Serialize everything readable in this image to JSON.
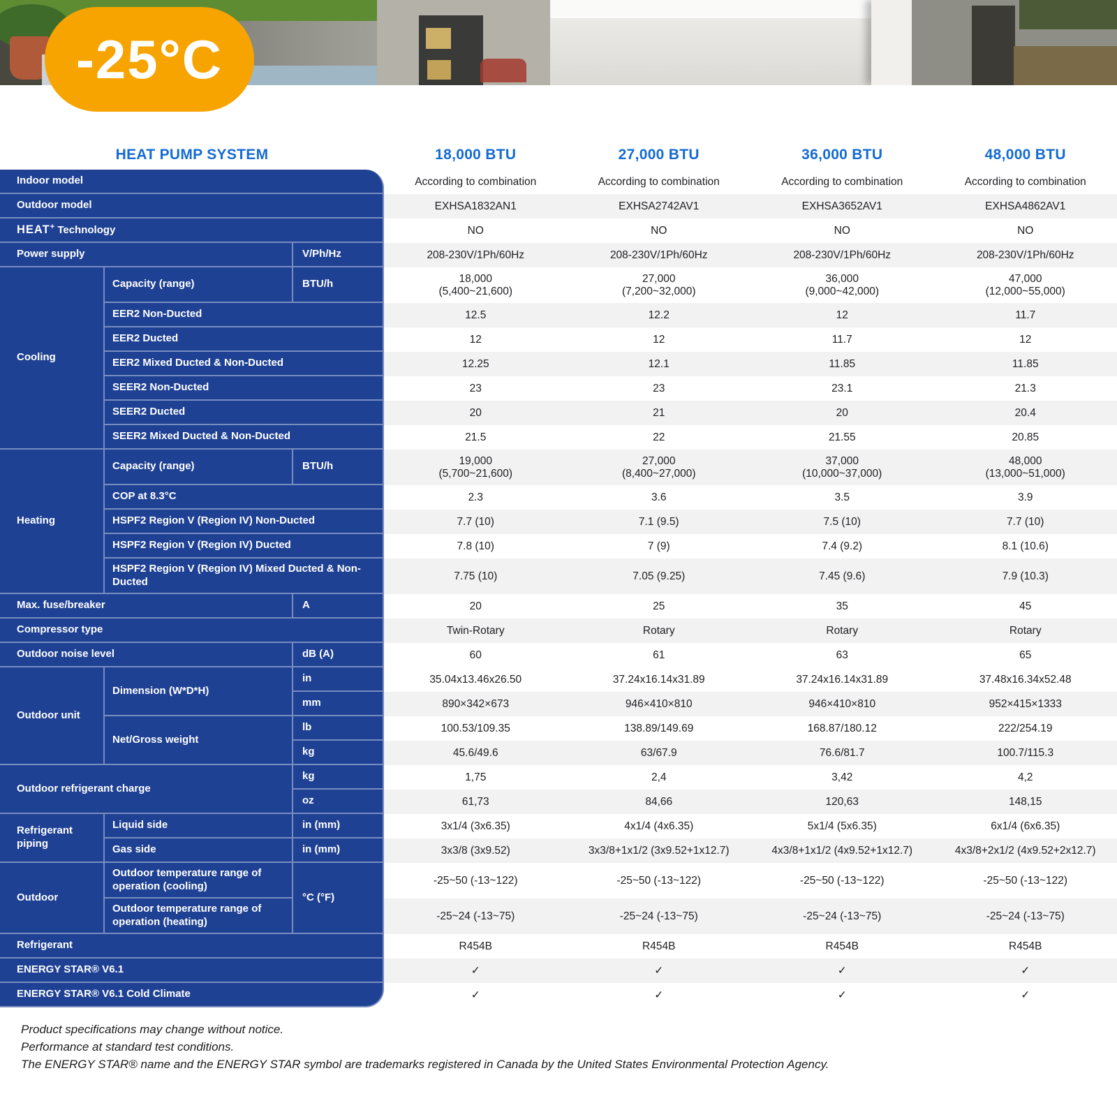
{
  "colors": {
    "panel_blue": "#1f4194",
    "header_blue": "#146bd2",
    "badge_orange": "#f7a400",
    "row_alt": "#f2f2f3"
  },
  "header": {
    "badge_label": "-25°C",
    "logo_name": "starburst-logo"
  },
  "table": {
    "title": "HEAT PUMP SYSTEM",
    "columns": [
      "18,000 BTU",
      "27,000 BTU",
      "36,000 BTU",
      "48,000 BTU"
    ],
    "categories": {
      "cooling": "Cooling",
      "heating": "Heating",
      "outdoor_unit": "Outdoor unit",
      "refrigerant_piping": "Refrigerant piping",
      "outdoor": "Outdoor",
      "dimension": "Dimension (W*D*H)",
      "weight": "Net/Gross weight",
      "outdoor_charge": "Outdoor refrigerant charge"
    },
    "rows": {
      "indoor_model": {
        "label": "Indoor model",
        "values": [
          "According to combination",
          "According to combination",
          "According to combination",
          "According to combination"
        ]
      },
      "outdoor_model": {
        "label": "Outdoor model",
        "values": [
          "EXHSA1832AN1",
          "EXHSA2742AV1",
          "EXHSA3652AV1",
          "EXHSA4862AV1"
        ]
      },
      "heat_tech": {
        "brand": "HEAT",
        "sup": "+",
        "rest": "Technology",
        "values": [
          "NO",
          "NO",
          "NO",
          "NO"
        ]
      },
      "power_supply": {
        "label": "Power supply",
        "unit": "V/Ph/Hz",
        "values": [
          "208-230V/1Ph/60Hz",
          "208-230V/1Ph/60Hz",
          "208-230V/1Ph/60Hz",
          "208-230V/1Ph/60Hz"
        ]
      },
      "cooling_capacity": {
        "label": "Capacity (range)",
        "unit": "BTU/h",
        "values": [
          "18,000\n(5,400~21,600)",
          "27,000\n(7,200~32,000)",
          "36,000\n(9,000~42,000)",
          "47,000\n(12,000~55,000)"
        ]
      },
      "eer2_nd": {
        "label": "EER2 Non-Ducted",
        "values": [
          "12.5",
          "12.2",
          "12",
          "11.7"
        ]
      },
      "eer2_d": {
        "label": "EER2 Ducted",
        "values": [
          "12",
          "12",
          "11.7",
          "12"
        ]
      },
      "eer2_m": {
        "label": "EER2 Mixed Ducted & Non-Ducted",
        "values": [
          "12.25",
          "12.1",
          "11.85",
          "11.85"
        ]
      },
      "seer2_nd": {
        "label": "SEER2 Non-Ducted",
        "values": [
          "23",
          "23",
          "23.1",
          "21.3"
        ]
      },
      "seer2_d": {
        "label": "SEER2 Ducted",
        "values": [
          "20",
          "21",
          "20",
          "20.4"
        ]
      },
      "seer2_m": {
        "label": "SEER2 Mixed Ducted & Non-Ducted",
        "values": [
          "21.5",
          "22",
          "21.55",
          "20.85"
        ]
      },
      "heating_capacity": {
        "label": "Capacity (range)",
        "unit": "BTU/h",
        "values": [
          "19,000\n(5,700~21,600)",
          "27,000\n(8,400~27,000)",
          "37,000\n(10,000~37,000)",
          "48,000\n(13,000~51,000)"
        ]
      },
      "cop": {
        "label": "COP at 8.3°C",
        "values": [
          "2.3",
          "3.6",
          "3.5",
          "3.9"
        ]
      },
      "hspf2_nd": {
        "label": "HSPF2 Region V (Region IV) Non-Ducted",
        "values": [
          "7.7 (10)",
          "7.1 (9.5)",
          "7.5 (10)",
          "7.7 (10)"
        ]
      },
      "hspf2_d": {
        "label": "HSPF2 Region V (Region IV) Ducted",
        "values": [
          "7.8 (10)",
          "7 (9)",
          "7.4 (9.2)",
          "8.1 (10.6)"
        ]
      },
      "hspf2_m": {
        "label": "HSPF2 Region V (Region IV) Mixed Ducted & Non-Ducted",
        "values": [
          "7.75 (10)",
          "7.05 (9.25)",
          "7.45 (9.6)",
          "7.9 (10.3)"
        ]
      },
      "max_fuse": {
        "label": "Max. fuse/breaker",
        "unit": "A",
        "values": [
          "20",
          "25",
          "35",
          "45"
        ]
      },
      "compressor": {
        "label": "Compressor type",
        "values": [
          "Twin-Rotary",
          "Rotary",
          "Rotary",
          "Rotary"
        ]
      },
      "noise": {
        "label": "Outdoor noise level",
        "unit": "dB (A)",
        "values": [
          "60",
          "61",
          "63",
          "65"
        ]
      },
      "dim_in": {
        "unit": "in",
        "values": [
          "35.04x13.46x26.50",
          "37.24x16.14x31.89",
          "37.24x16.14x31.89",
          "37.48x16.34x52.48"
        ]
      },
      "dim_mm": {
        "unit": "mm",
        "values": [
          "890×342×673",
          "946×410×810",
          "946×410×810",
          "952×415×1333"
        ]
      },
      "wt_lb": {
        "unit": "lb",
        "values": [
          "100.53/109.35",
          "138.89/149.69",
          "168.87/180.12",
          "222/254.19"
        ]
      },
      "wt_kg": {
        "unit": "kg",
        "values": [
          "45.6/49.6",
          "63/67.9",
          "76.6/81.7",
          "100.7/115.3"
        ]
      },
      "charge_kg": {
        "unit": "kg",
        "values": [
          "1,75",
          "2,4",
          "3,42",
          "4,2"
        ]
      },
      "charge_oz": {
        "unit": "oz",
        "values": [
          "61,73",
          "84,66",
          "120,63",
          "148,15"
        ]
      },
      "liquid": {
        "label": "Liquid side",
        "unit": "in (mm)",
        "values": [
          "3x1/4 (3x6.35)",
          "4x1/4 (4x6.35)",
          "5x1/4 (5x6.35)",
          "6x1/4 (6x6.35)"
        ]
      },
      "gas": {
        "label": "Gas side",
        "unit": "in (mm)",
        "values": [
          "3x3/8 (3x9.52)",
          "3x3/8+1x1/2 (3x9.52+1x12.7)",
          "4x3/8+1x1/2 (4x9.52+1x12.7)",
          "4x3/8+2x1/2 (4x9.52+2x12.7)"
        ]
      },
      "temp_cool": {
        "label": "Outdoor temperature range of operation (cooling)",
        "unit": "°C (°F)",
        "values": [
          "-25~50 (-13~122)",
          "-25~50 (-13~122)",
          "-25~50 (-13~122)",
          "-25~50 (-13~122)"
        ]
      },
      "temp_heat": {
        "label": "Outdoor temperature range of operation (heating)",
        "values": [
          "-25~24 (-13~75)",
          "-25~24 (-13~75)",
          "-25~24 (-13~75)",
          "-25~24 (-13~75)"
        ]
      },
      "refrigerant": {
        "label": "Refrigerant",
        "values": [
          "R454B",
          "R454B",
          "R454B",
          "R454B"
        ]
      },
      "energy_star": {
        "label": "ENERGY STAR® V6.1",
        "values": [
          "✓",
          "✓",
          "✓",
          "✓"
        ]
      },
      "energy_star_cc": {
        "label": "ENERGY STAR® V6.1 Cold Climate",
        "values": [
          "✓",
          "✓",
          "✓",
          "✓"
        ]
      }
    }
  },
  "footnotes": [
    "Product specifications may change without notice.",
    "Performance at standard test conditions.",
    "The ENERGY STAR® name and the ENERGY STAR symbol are trademarks registered in Canada by the United States Environmental Protection Agency."
  ]
}
